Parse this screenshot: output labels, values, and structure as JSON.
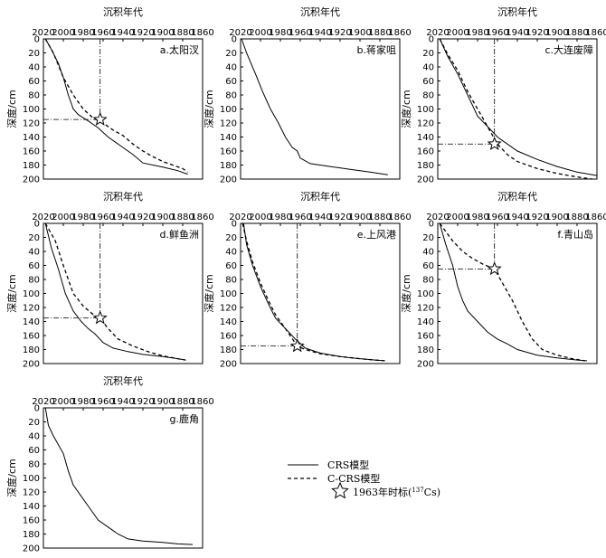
{
  "chart_data": [
    {
      "type": "line",
      "panel_label": "a.太阳汊",
      "xlabel": "沉积年代",
      "ylabel": "深度/cm",
      "xlim": [
        2020,
        1860
      ],
      "ylim": [
        0,
        200
      ],
      "xticks": [
        2020,
        2000,
        1980,
        1960,
        1940,
        1920,
        1900,
        1880,
        1860
      ],
      "yticks": [
        0,
        20,
        40,
        60,
        80,
        100,
        120,
        140,
        160,
        180,
        200
      ],
      "series": [
        {
          "key": "crs",
          "x": [
            2018,
            2012,
            2005,
            2000,
            1995,
            1990,
            1985,
            1975,
            1965,
            1955,
            1940,
            1930,
            1920,
            1900,
            1885,
            1875
          ],
          "y": [
            0,
            15,
            35,
            55,
            80,
            100,
            108,
            117,
            127,
            140,
            155,
            165,
            177,
            183,
            188,
            193
          ]
        },
        {
          "key": "ccrs",
          "x": [
            2018,
            2010,
            2000,
            1990,
            1980,
            1970,
            1960,
            1950,
            1940,
            1930,
            1920,
            1910,
            1900,
            1880,
            1875
          ],
          "y": [
            0,
            20,
            55,
            80,
            100,
            113,
            120,
            130,
            138,
            150,
            160,
            168,
            175,
            185,
            190
          ]
        }
      ],
      "marker": {
        "year": 1963,
        "depth": 115
      }
    },
    {
      "type": "line",
      "panel_label": "b.蒋家咀",
      "xlabel": "沉积年代",
      "ylabel": "深度/cm",
      "xlim": [
        2020,
        1860
      ],
      "ylim": [
        0,
        200
      ],
      "xticks": [
        2020,
        2000,
        1980,
        1960,
        1940,
        1920,
        1900,
        1880,
        1860
      ],
      "yticks": [
        0,
        20,
        40,
        60,
        80,
        100,
        120,
        140,
        160,
        180,
        200
      ],
      "series": [
        {
          "key": "crs",
          "x": [
            2019,
            2014,
            2005,
            1998,
            1990,
            1982,
            1975,
            1968,
            1963,
            1960,
            1950,
            1930,
            1910,
            1890,
            1872
          ],
          "y": [
            0,
            20,
            50,
            75,
            100,
            120,
            140,
            155,
            160,
            170,
            178,
            182,
            186,
            190,
            194
          ]
        }
      ]
    },
    {
      "type": "line",
      "panel_label": "c.大连废障",
      "xlabel": "沉积年代",
      "ylabel": "深度/cm",
      "xlim": [
        2020,
        1860
      ],
      "ylim": [
        0,
        200
      ],
      "xticks": [
        2020,
        2000,
        1980,
        1960,
        1940,
        1920,
        1900,
        1880,
        1860
      ],
      "yticks": [
        0,
        20,
        40,
        60,
        80,
        100,
        120,
        140,
        160,
        180,
        200
      ],
      "series": [
        {
          "key": "crs",
          "x": [
            2018,
            2010,
            2000,
            1990,
            1980,
            1970,
            1960,
            1950,
            1940,
            1920,
            1900,
            1880,
            1860
          ],
          "y": [
            0,
            25,
            50,
            80,
            110,
            125,
            140,
            150,
            160,
            172,
            182,
            190,
            195
          ]
        },
        {
          "key": "ccrs",
          "x": [
            2018,
            2010,
            2000,
            1990,
            1980,
            1970,
            1960,
            1950,
            1940,
            1920,
            1900,
            1880,
            1865
          ],
          "y": [
            0,
            22,
            45,
            75,
            100,
            125,
            150,
            165,
            175,
            185,
            192,
            197,
            200
          ]
        }
      ],
      "marker": {
        "year": 1963,
        "depth": 150
      }
    },
    {
      "type": "line",
      "panel_label": "d.鲜鱼洲",
      "xlabel": "沉积年代",
      "ylabel": "深度/cm",
      "xlim": [
        2020,
        1860
      ],
      "ylim": [
        0,
        200
      ],
      "xticks": [
        2020,
        2000,
        1980,
        1960,
        1940,
        1920,
        1900,
        1880,
        1860
      ],
      "yticks": [
        0,
        20,
        40,
        60,
        80,
        100,
        120,
        140,
        160,
        180,
        200
      ],
      "series": [
        {
          "key": "crs",
          "x": [
            2018,
            2012,
            2005,
            1998,
            1990,
            1982,
            1975,
            1968,
            1960,
            1950,
            1935,
            1920,
            1900,
            1885,
            1877
          ],
          "y": [
            0,
            35,
            65,
            100,
            125,
            140,
            150,
            158,
            170,
            178,
            183,
            187,
            190,
            193,
            195
          ]
        },
        {
          "key": "ccrs",
          "x": [
            2018,
            2008,
            2000,
            1990,
            1980,
            1970,
            1963,
            1955,
            1945,
            1930,
            1915,
            1900,
            1885,
            1877
          ],
          "y": [
            0,
            25,
            60,
            100,
            118,
            130,
            135,
            150,
            165,
            175,
            183,
            189,
            193,
            195
          ]
        }
      ],
      "marker": {
        "year": 1963,
        "depth": 135
      }
    },
    {
      "type": "line",
      "panel_label": "e.上风港",
      "xlabel": "沉积年代",
      "ylabel": "深度/cm",
      "xlim": [
        2020,
        1860
      ],
      "ylim": [
        0,
        200
      ],
      "xticks": [
        2020,
        2000,
        1980,
        1960,
        1940,
        1920,
        1900,
        1880,
        1860
      ],
      "yticks": [
        0,
        20,
        40,
        60,
        80,
        100,
        120,
        140,
        160,
        180,
        200
      ],
      "series": [
        {
          "key": "crs",
          "x": [
            2017,
            2014,
            2008,
            2000,
            1992,
            1985,
            1975,
            1965,
            1955,
            1940,
            1920,
            1900,
            1885,
            1875
          ],
          "y": [
            0,
            30,
            60,
            90,
            115,
            135,
            150,
            165,
            178,
            185,
            190,
            193,
            195,
            196
          ]
        },
        {
          "key": "ccrs",
          "x": [
            2018,
            2014,
            2008,
            2000,
            1992,
            1985,
            1975,
            1963,
            1955,
            1940,
            1920,
            1900,
            1885,
            1875
          ],
          "y": [
            0,
            25,
            55,
            85,
            110,
            130,
            150,
            175,
            180,
            186,
            190,
            193,
            195,
            196
          ]
        }
      ],
      "marker": {
        "year": 1963,
        "depth": 175
      }
    },
    {
      "type": "line",
      "panel_label": "f.青山岛",
      "xlabel": "沉积年代",
      "ylabel": "深度/cm",
      "xlim": [
        2020,
        1860
      ],
      "ylim": [
        0,
        200
      ],
      "xticks": [
        2020,
        2000,
        1980,
        1960,
        1940,
        1920,
        1900,
        1880,
        1860
      ],
      "yticks": [
        0,
        20,
        40,
        60,
        80,
        100,
        120,
        140,
        160,
        180,
        200
      ],
      "series": [
        {
          "key": "crs",
          "x": [
            2018,
            2012,
            2005,
            2000,
            1995,
            1990,
            1980,
            1970,
            1960,
            1950,
            1940,
            1920,
            1900,
            1880,
            1870
          ],
          "y": [
            0,
            30,
            60,
            90,
            110,
            125,
            140,
            155,
            165,
            172,
            180,
            188,
            192,
            195,
            196
          ]
        },
        {
          "key": "ccrs",
          "x": [
            2018,
            2005,
            1995,
            1985,
            1975,
            1963,
            1955,
            1945,
            1935,
            1925,
            1915,
            1900,
            1885,
            1872
          ],
          "y": [
            0,
            25,
            40,
            50,
            58,
            65,
            85,
            110,
            140,
            165,
            180,
            188,
            193,
            196
          ]
        }
      ],
      "marker": {
        "year": 1963,
        "depth": 65
      }
    },
    {
      "type": "line",
      "panel_label": "g.鹿角",
      "xlabel": "沉积年代",
      "ylabel": "深度/cm",
      "xlim": [
        2020,
        1860
      ],
      "ylim": [
        0,
        200
      ],
      "xticks": [
        2020,
        2000,
        1980,
        1960,
        1940,
        1920,
        1900,
        1880,
        1860
      ],
      "yticks": [
        0,
        20,
        40,
        60,
        80,
        100,
        120,
        140,
        160,
        180,
        200
      ],
      "series": [
        {
          "key": "crs",
          "x": [
            2018,
            2015,
            2010,
            2000,
            1995,
            1990,
            1980,
            1975,
            1965,
            1955,
            1945,
            1935,
            1920,
            1900,
            1885,
            1870
          ],
          "y": [
            0,
            25,
            40,
            65,
            90,
            110,
            130,
            140,
            160,
            170,
            180,
            187,
            190,
            192,
            194,
            195
          ]
        }
      ]
    }
  ],
  "legend": {
    "crs": "CRS模型",
    "ccrs": "C-CRS模型",
    "marker_pre": "1963年时标(",
    "marker_sup": "137",
    "marker_post": "Cs)"
  }
}
